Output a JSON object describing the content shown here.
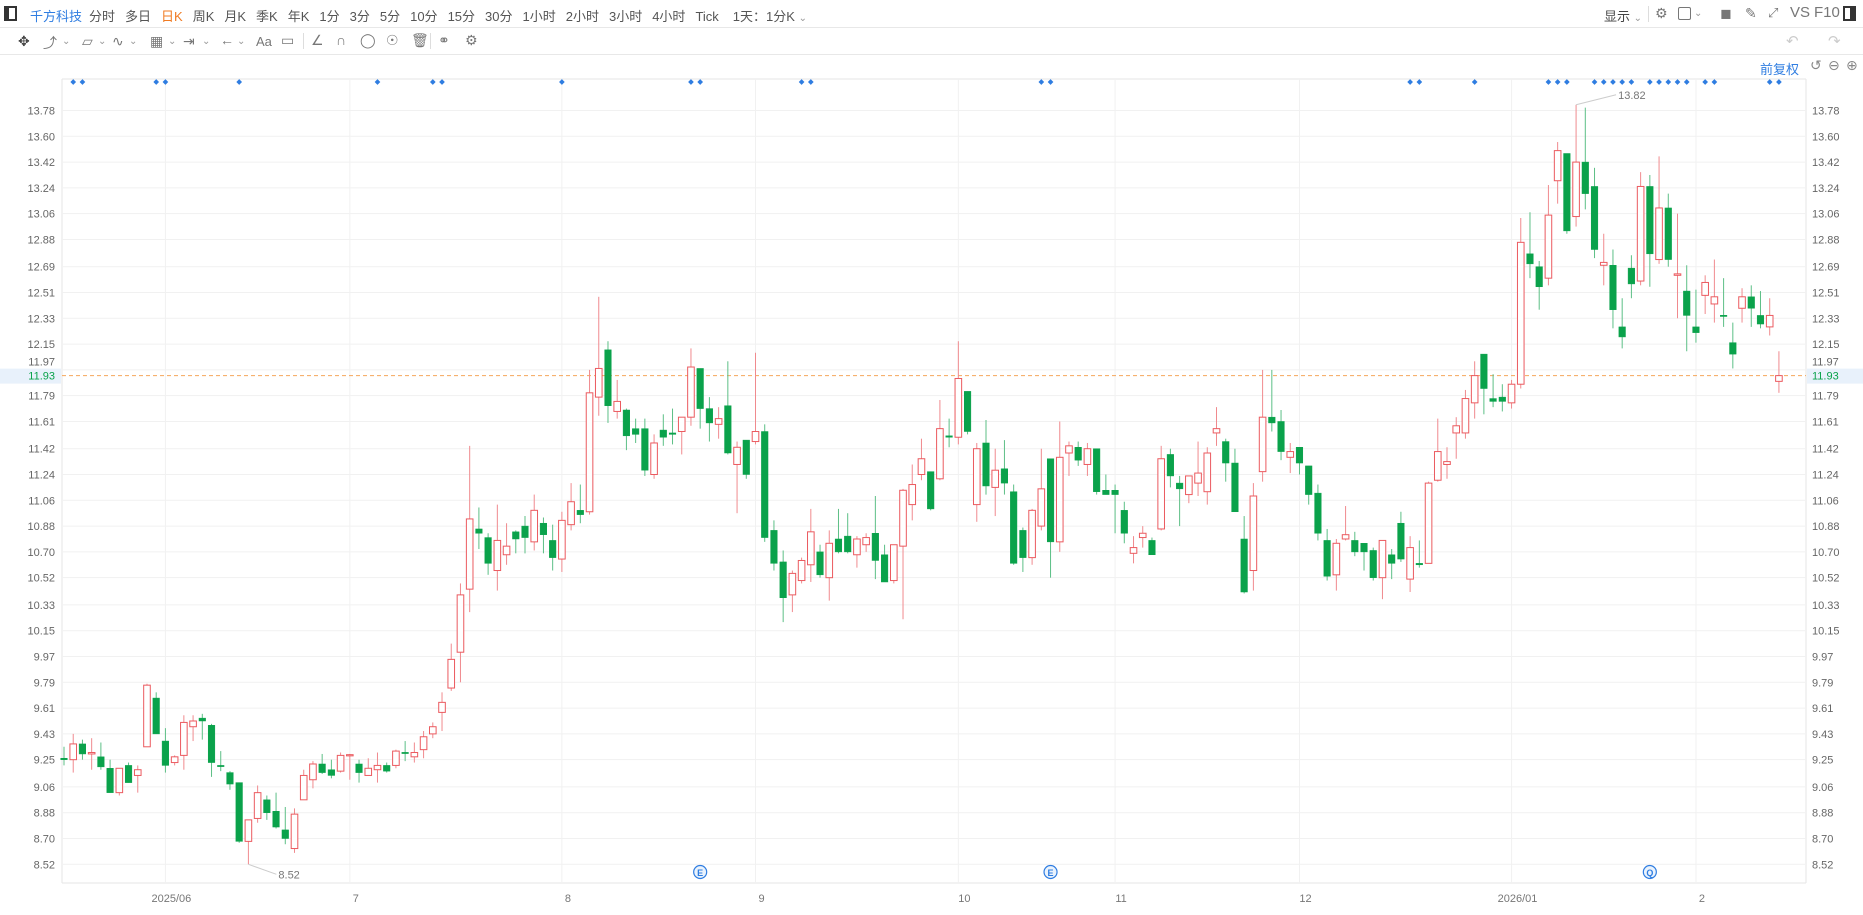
{
  "toolbar": {
    "stock_name": "千方科技",
    "periods": [
      "分时",
      "多日",
      "日K",
      "周K",
      "月K",
      "季K",
      "年K",
      "1分",
      "3分",
      "5分",
      "10分",
      "15分",
      "30分",
      "1小时",
      "2小时",
      "3小时",
      "4小时",
      "Tick"
    ],
    "active_period": "日K",
    "interval_select": "1天：1分K",
    "display_label": "显示",
    "vs_label": "VS",
    "f10_label": "F10"
  },
  "chart_header": {
    "adjust_label": "前复权"
  },
  "colors": {
    "up": "#eb5a5f",
    "down": "#0aa24b",
    "accent": "#2f7de1",
    "active_tab": "#f07b23",
    "last_price_line": "#f5a65b"
  },
  "chart_data": {
    "type": "candlestick",
    "ohlc_format": [
      "open",
      "high",
      "low",
      "close"
    ],
    "candles": [
      [
        9.26,
        9.34,
        9.21,
        9.25
      ],
      [
        9.25,
        9.43,
        9.16,
        9.36
      ],
      [
        9.36,
        9.39,
        9.25,
        9.29
      ],
      [
        9.29,
        9.4,
        9.18,
        9.3
      ],
      [
        9.27,
        9.37,
        9.18,
        9.2
      ],
      [
        9.19,
        9.25,
        9.02,
        9.02
      ],
      [
        9.02,
        9.19,
        9.0,
        9.19
      ],
      [
        9.21,
        9.23,
        9.09,
        9.09
      ],
      [
        9.14,
        9.21,
        9.02,
        9.18
      ],
      [
        9.34,
        9.78,
        9.34,
        9.77
      ],
      [
        9.68,
        9.72,
        9.43,
        9.43
      ],
      [
        9.38,
        9.47,
        9.16,
        9.21
      ],
      [
        9.23,
        9.28,
        9.21,
        9.27
      ],
      [
        9.28,
        9.56,
        9.18,
        9.51
      ],
      [
        9.48,
        9.56,
        9.38,
        9.52
      ],
      [
        9.54,
        9.57,
        9.39,
        9.52
      ],
      [
        9.49,
        9.5,
        9.13,
        9.23
      ],
      [
        9.21,
        9.31,
        9.17,
        9.205
      ],
      [
        9.16,
        9.17,
        9.04,
        9.08
      ],
      [
        9.09,
        9.09,
        8.67,
        8.68
      ],
      [
        8.68,
        8.83,
        8.52,
        8.83
      ],
      [
        8.84,
        9.07,
        8.81,
        9.02
      ],
      [
        8.97,
        9.0,
        8.83,
        8.88
      ],
      [
        8.89,
        9.02,
        8.77,
        8.78
      ],
      [
        8.76,
        8.92,
        8.66,
        8.7
      ],
      [
        8.63,
        8.91,
        8.6,
        8.87
      ],
      [
        8.97,
        9.18,
        8.97,
        9.14
      ],
      [
        9.11,
        9.24,
        9.05,
        9.22
      ],
      [
        9.22,
        9.29,
        9.15,
        9.16
      ],
      [
        9.18,
        9.25,
        9.12,
        9.14
      ],
      [
        9.17,
        9.3,
        9.16,
        9.28
      ],
      [
        9.28,
        9.29,
        9.11,
        9.285
      ],
      [
        9.22,
        9.25,
        9.09,
        9.16
      ],
      [
        9.14,
        9.26,
        9.14,
        9.19
      ],
      [
        9.18,
        9.3,
        9.09,
        9.21
      ],
      [
        9.21,
        9.23,
        9.16,
        9.17
      ],
      [
        9.21,
        9.32,
        9.19,
        9.31
      ],
      [
        9.301,
        9.38,
        9.24,
        9.299
      ],
      [
        9.27,
        9.37,
        9.23,
        9.3
      ],
      [
        9.32,
        9.45,
        9.26,
        9.41
      ],
      [
        9.43,
        9.51,
        9.4,
        9.48
      ],
      [
        9.58,
        9.72,
        9.45,
        9.65
      ],
      [
        9.75,
        10.06,
        9.73,
        9.95
      ],
      [
        10.0,
        10.48,
        9.79,
        10.4
      ],
      [
        10.44,
        11.44,
        10.28,
        10.93
      ],
      [
        10.86,
        11.01,
        10.72,
        10.83
      ],
      [
        10.8,
        10.83,
        10.54,
        10.62
      ],
      [
        10.57,
        11.03,
        10.43,
        10.78
      ],
      [
        10.68,
        10.9,
        10.61,
        10.74
      ],
      [
        10.84,
        10.85,
        10.69,
        10.79
      ],
      [
        10.88,
        10.95,
        10.69,
        10.8
      ],
      [
        10.77,
        11.1,
        10.71,
        10.99
      ],
      [
        10.9,
        10.94,
        10.69,
        10.82
      ],
      [
        10.78,
        10.89,
        10.57,
        10.66
      ],
      [
        10.65,
        10.98,
        10.56,
        10.92
      ],
      [
        10.89,
        11.18,
        10.85,
        11.05
      ],
      [
        10.99,
        11.17,
        10.9,
        10.96
      ],
      [
        10.98,
        11.97,
        10.96,
        11.81
      ],
      [
        11.78,
        12.48,
        11.65,
        11.98
      ],
      [
        12.11,
        12.17,
        11.6,
        11.72
      ],
      [
        11.68,
        11.9,
        11.63,
        11.75
      ],
      [
        11.69,
        11.7,
        11.41,
        11.51
      ],
      [
        11.56,
        11.63,
        11.46,
        11.52
      ],
      [
        11.56,
        11.63,
        11.23,
        11.27
      ],
      [
        11.24,
        11.52,
        11.21,
        11.46
      ],
      [
        11.55,
        11.66,
        11.44,
        11.5
      ],
      [
        11.53,
        11.7,
        11.45,
        11.52
      ],
      [
        11.54,
        11.64,
        11.38,
        11.64
      ],
      [
        11.64,
        12.12,
        11.58,
        11.99
      ],
      [
        11.98,
        11.98,
        11.56,
        11.7
      ],
      [
        11.7,
        11.78,
        11.47,
        11.6
      ],
      [
        11.59,
        11.71,
        11.49,
        11.63
      ],
      [
        11.72,
        12.03,
        11.38,
        11.39
      ],
      [
        11.31,
        11.47,
        10.97,
        11.43
      ],
      [
        11.48,
        11.48,
        11.21,
        11.24
      ],
      [
        11.47,
        12.09,
        11.45,
        11.54
      ],
      [
        11.54,
        11.59,
        10.77,
        10.8
      ],
      [
        10.85,
        10.92,
        10.57,
        10.62
      ],
      [
        10.63,
        10.71,
        10.21,
        10.38
      ],
      [
        10.4,
        10.57,
        10.28,
        10.55
      ],
      [
        10.5,
        10.66,
        10.48,
        10.64
      ],
      [
        10.61,
        11.0,
        10.49,
        10.84
      ],
      [
        10.7,
        10.75,
        10.52,
        10.54
      ],
      [
        10.52,
        10.85,
        10.36,
        10.76
      ],
      [
        10.79,
        11.0,
        10.69,
        10.7
      ],
      [
        10.81,
        10.97,
        10.69,
        10.7
      ],
      [
        10.68,
        10.81,
        10.59,
        10.79
      ],
      [
        10.75,
        10.83,
        10.7,
        10.8
      ],
      [
        10.83,
        11.09,
        10.51,
        10.64
      ],
      [
        10.68,
        10.75,
        10.49,
        10.49
      ],
      [
        10.5,
        10.75,
        10.48,
        10.75
      ],
      [
        10.74,
        11.14,
        10.23,
        11.13
      ],
      [
        11.03,
        11.31,
        10.92,
        11.17
      ],
      [
        11.24,
        11.49,
        11.2,
        11.35
      ],
      [
        11.26,
        11.26,
        10.99,
        11.0
      ],
      [
        11.21,
        11.76,
        11.2,
        11.56
      ],
      [
        11.51,
        11.63,
        11.43,
        11.5
      ],
      [
        11.5,
        12.17,
        11.45,
        11.91
      ],
      [
        11.82,
        11.82,
        11.52,
        11.54
      ],
      [
        11.03,
        11.46,
        10.91,
        11.42
      ],
      [
        11.46,
        11.62,
        11.1,
        11.16
      ],
      [
        11.15,
        11.42,
        10.95,
        11.27
      ],
      [
        11.28,
        11.48,
        11.1,
        11.18
      ],
      [
        11.12,
        11.17,
        10.61,
        10.62
      ],
      [
        10.85,
        10.87,
        10.56,
        10.66
      ],
      [
        10.66,
        11.0,
        10.61,
        10.99
      ],
      [
        10.88,
        11.42,
        10.85,
        11.14
      ],
      [
        11.35,
        11.35,
        10.52,
        10.77
      ],
      [
        10.77,
        11.61,
        10.7,
        11.36
      ],
      [
        11.39,
        11.47,
        11.23,
        11.44
      ],
      [
        11.43,
        11.47,
        11.3,
        11.34
      ],
      [
        11.31,
        11.46,
        11.23,
        11.42
      ],
      [
        11.42,
        11.42,
        11.1,
        11.12
      ],
      [
        11.13,
        11.24,
        11.1,
        11.1
      ],
      [
        11.13,
        11.17,
        10.83,
        11.1
      ],
      [
        10.99,
        11.05,
        10.76,
        10.83
      ],
      [
        10.69,
        10.81,
        10.62,
        10.73
      ],
      [
        10.8,
        10.88,
        10.73,
        10.83
      ],
      [
        10.78,
        10.8,
        10.68,
        10.68
      ],
      [
        10.86,
        11.44,
        10.85,
        11.35
      ],
      [
        11.38,
        11.42,
        11.15,
        11.23
      ],
      [
        11.18,
        11.23,
        10.88,
        11.14
      ],
      [
        11.1,
        11.23,
        11.04,
        11.23
      ],
      [
        11.18,
        11.47,
        11.09,
        11.25
      ],
      [
        11.12,
        11.43,
        11.03,
        11.39
      ],
      [
        11.53,
        11.71,
        11.44,
        11.56
      ],
      [
        11.47,
        11.49,
        11.19,
        11.32
      ],
      [
        11.32,
        11.42,
        10.98,
        10.98
      ],
      [
        10.79,
        10.95,
        10.41,
        10.42
      ],
      [
        10.57,
        11.18,
        10.43,
        11.09
      ],
      [
        11.26,
        11.97,
        11.19,
        11.64
      ],
      [
        11.64,
        11.97,
        11.54,
        11.6
      ],
      [
        11.61,
        11.69,
        11.34,
        11.4
      ],
      [
        11.36,
        11.46,
        11.25,
        11.4
      ],
      [
        11.43,
        11.43,
        11.24,
        11.32
      ],
      [
        11.3,
        11.3,
        11.03,
        11.1
      ],
      [
        11.11,
        11.17,
        10.78,
        10.83
      ],
      [
        10.78,
        10.86,
        10.5,
        10.53
      ],
      [
        10.54,
        10.79,
        10.43,
        10.76
      ],
      [
        10.79,
        11.02,
        10.78,
        10.82
      ],
      [
        10.78,
        10.84,
        10.67,
        10.7
      ],
      [
        10.76,
        10.76,
        10.57,
        10.7
      ],
      [
        10.71,
        10.73,
        10.5,
        10.52
      ],
      [
        10.52,
        10.78,
        10.37,
        10.78
      ],
      [
        10.68,
        10.72,
        10.51,
        10.62
      ],
      [
        10.9,
        10.98,
        10.63,
        10.65
      ],
      [
        10.51,
        10.81,
        10.42,
        10.73
      ],
      [
        10.62,
        10.78,
        10.59,
        10.61
      ],
      [
        10.62,
        11.19,
        10.62,
        11.18
      ],
      [
        11.2,
        11.63,
        11.19,
        11.4
      ],
      [
        11.31,
        11.43,
        11.21,
        11.33
      ],
      [
        11.53,
        11.64,
        11.35,
        11.58
      ],
      [
        11.53,
        11.83,
        11.49,
        11.77
      ],
      [
        11.74,
        12.03,
        11.63,
        11.93
      ],
      [
        12.08,
        12.08,
        11.66,
        11.84
      ],
      [
        11.77,
        11.94,
        11.71,
        11.75
      ],
      [
        11.78,
        11.87,
        11.68,
        11.75
      ],
      [
        11.74,
        11.9,
        11.7,
        11.87
      ],
      [
        11.87,
        13.03,
        11.84,
        12.86
      ],
      [
        12.78,
        13.07,
        12.61,
        12.71
      ],
      [
        12.69,
        12.73,
        12.39,
        12.55
      ],
      [
        12.61,
        13.26,
        12.56,
        13.05
      ],
      [
        13.29,
        13.56,
        13.13,
        13.5
      ],
      [
        13.48,
        13.48,
        12.92,
        12.94
      ],
      [
        13.04,
        13.82,
        12.97,
        13.42
      ],
      [
        13.42,
        13.8,
        13.09,
        13.2
      ],
      [
        13.25,
        13.38,
        12.75,
        12.81
      ],
      [
        12.7,
        12.92,
        12.56,
        12.72
      ],
      [
        12.7,
        12.81,
        12.26,
        12.39
      ],
      [
        12.27,
        12.47,
        12.12,
        12.2
      ],
      [
        12.68,
        12.77,
        12.47,
        12.57
      ],
      [
        12.59,
        13.35,
        12.56,
        13.25
      ],
      [
        13.25,
        13.33,
        12.55,
        12.78
      ],
      [
        12.74,
        13.46,
        12.71,
        13.1
      ],
      [
        13.1,
        13.2,
        12.69,
        12.74
      ],
      [
        12.63,
        13.06,
        12.33,
        12.64
      ],
      [
        12.52,
        12.7,
        12.1,
        12.35
      ],
      [
        12.27,
        12.53,
        12.16,
        12.23
      ],
      [
        12.49,
        12.63,
        12.36,
        12.58
      ],
      [
        12.43,
        12.74,
        12.3,
        12.48
      ],
      [
        12.351,
        12.61,
        12.27,
        12.349
      ],
      [
        12.16,
        12.3,
        11.98,
        12.08
      ],
      [
        12.4,
        12.54,
        12.3,
        12.48
      ],
      [
        12.48,
        12.56,
        12.27,
        12.4
      ],
      [
        12.35,
        12.52,
        12.26,
        12.29
      ],
      [
        12.27,
        12.47,
        12.21,
        12.35
      ],
      [
        11.89,
        12.1,
        11.81,
        11.93
      ]
    ],
    "y_ticks": [
      "13.78",
      "13.60",
      "13.42",
      "13.24",
      "13.06",
      "12.88",
      "12.69",
      "12.51",
      "12.33",
      "12.15",
      "11.97",
      "11.79",
      "11.61",
      "11.42",
      "11.24",
      "11.06",
      "10.88",
      "10.70",
      "10.52",
      "10.33",
      "10.15",
      "9.97",
      "9.79",
      "9.61",
      "9.43",
      "9.25",
      "9.06",
      "8.88",
      "8.70",
      "8.52"
    ],
    "ylim": [
      8.52,
      13.78
    ],
    "x_ticks": [
      {
        "label": "2025/06",
        "candle": 11
      },
      {
        "label": "7",
        "candle": 31
      },
      {
        "label": "8",
        "candle": 54
      },
      {
        "label": "9",
        "candle": 75
      },
      {
        "label": "10",
        "candle": 97
      },
      {
        "label": "11",
        "candle": 114
      },
      {
        "label": "12",
        "candle": 134
      },
      {
        "label": "2026/01",
        "candle": 157
      },
      {
        "label": "2",
        "candle": 177
      }
    ],
    "last_price": "11.93",
    "high_label": {
      "text": "13.82",
      "candle": 164,
      "value": 13.82
    },
    "low_label": {
      "text": "8.52",
      "candle": 20,
      "value": 8.52
    },
    "notice_dots": [
      1,
      2,
      10,
      11,
      19,
      34,
      40,
      41,
      54,
      68,
      69,
      80,
      81,
      106,
      107,
      146,
      147,
      153,
      161,
      162,
      163,
      166,
      167,
      168,
      169,
      170,
      172,
      173,
      174,
      175,
      176,
      178,
      179,
      185,
      186
    ],
    "event_markers": [
      {
        "text": "E",
        "candle": 69
      },
      {
        "text": "E",
        "candle": 107
      },
      {
        "text": "Q",
        "candle": 172
      }
    ],
    "grid": true
  }
}
